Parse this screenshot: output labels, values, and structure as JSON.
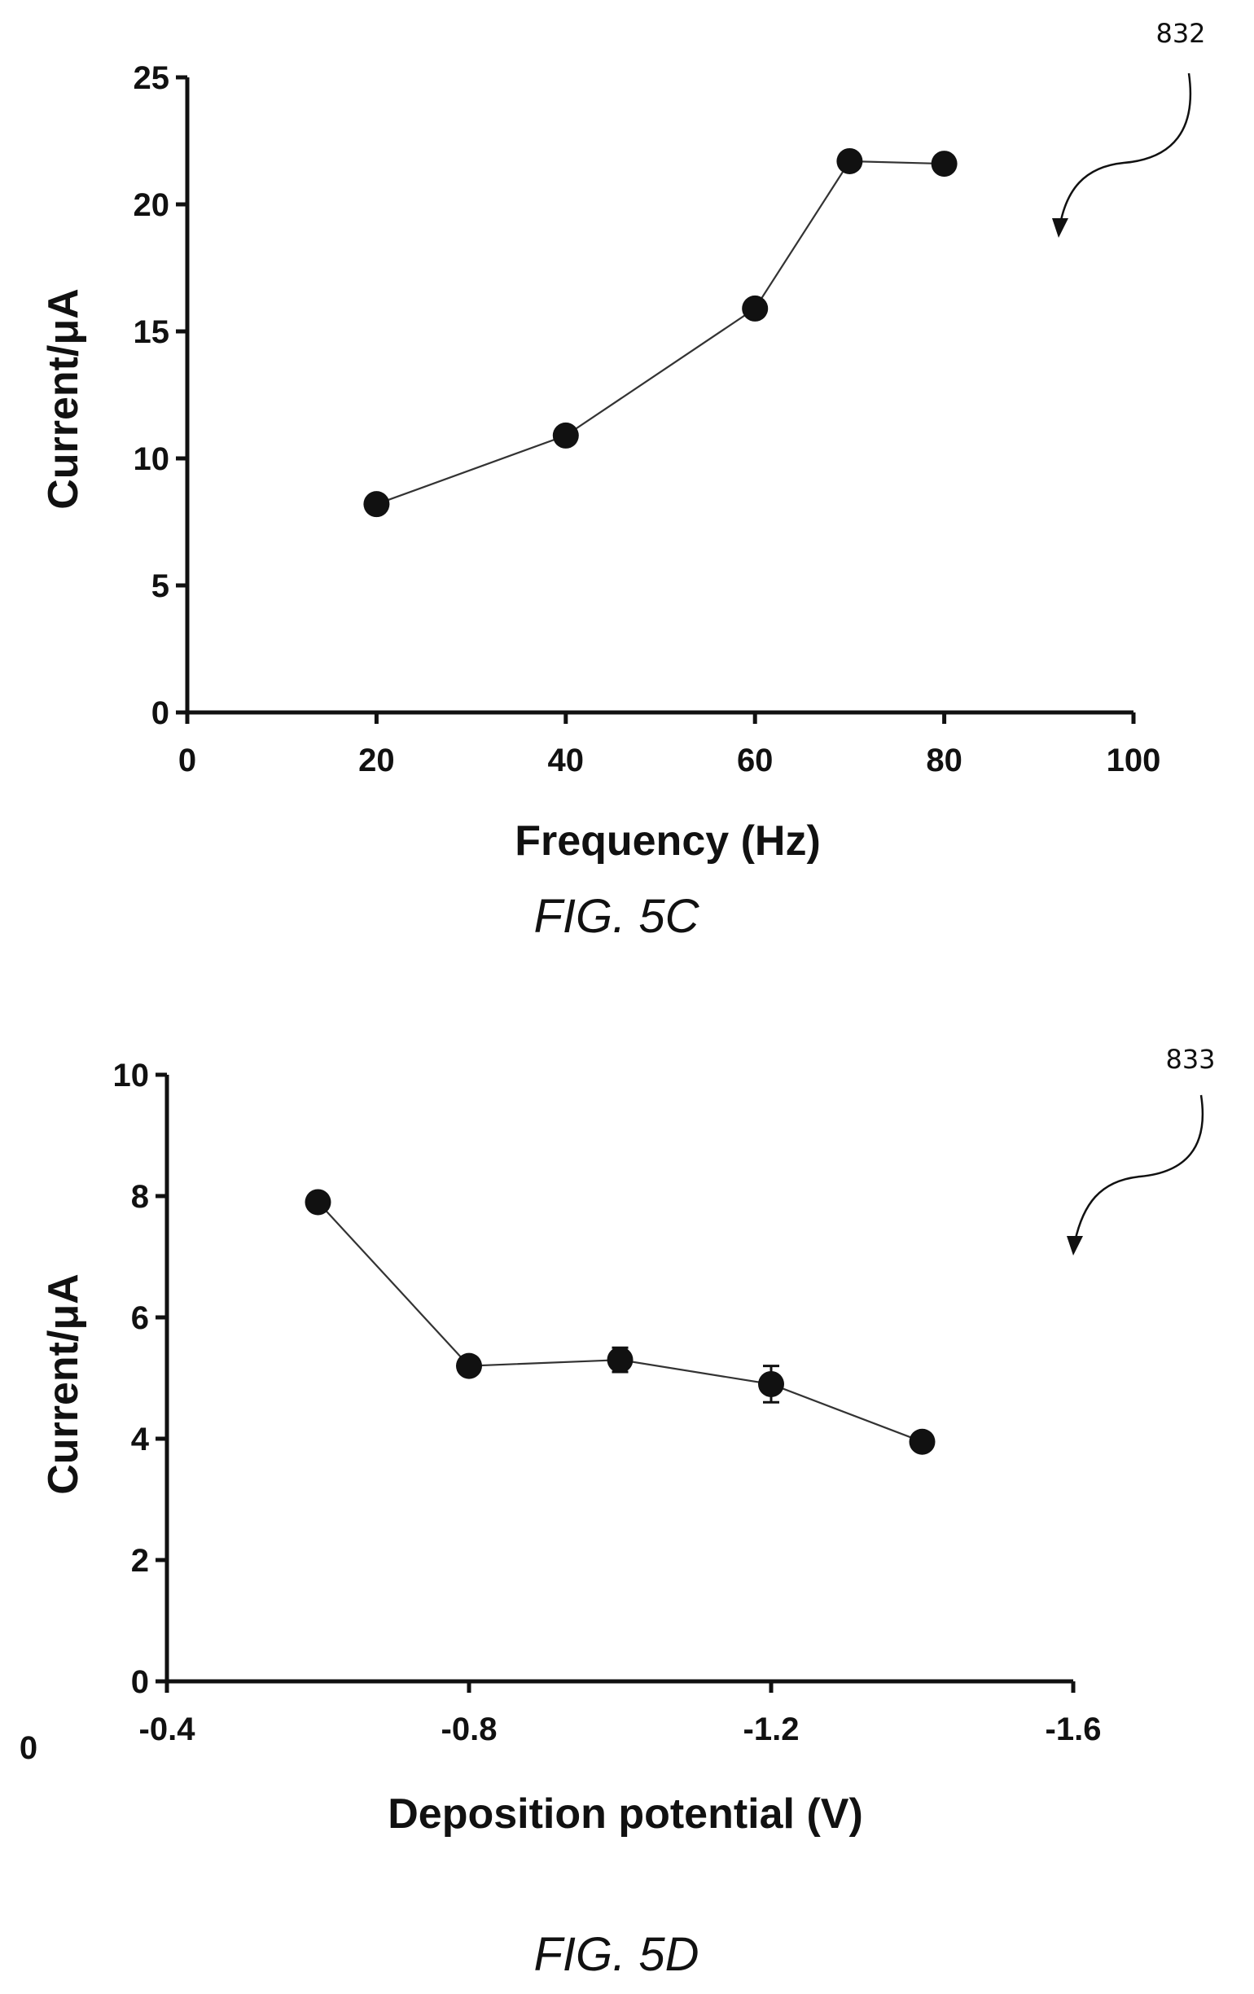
{
  "chart_data": [
    {
      "type": "line",
      "figure_label": "FIG. 5C",
      "reference_number": "832",
      "xlabel": "Frequency (Hz)",
      "ylabel": "Current/μA",
      "xlim": [
        0,
        100
      ],
      "ylim": [
        0,
        25
      ],
      "x_ticks": [
        "0",
        "20",
        "40",
        "60",
        "80",
        "100"
      ],
      "y_ticks": [
        "0",
        "5",
        "10",
        "15",
        "20",
        "25"
      ],
      "x_tick_values": [
        0,
        20,
        40,
        60,
        80,
        100
      ],
      "y_tick_values": [
        0,
        5,
        10,
        15,
        20,
        25
      ],
      "grid": false,
      "series": [
        {
          "x": [
            20,
            40,
            60,
            70,
            80
          ],
          "y": [
            8.2,
            10.9,
            15.9,
            21.7,
            21.6
          ],
          "error": [
            0,
            0,
            0,
            0,
            0
          ]
        }
      ]
    },
    {
      "type": "line",
      "figure_label": "FIG. 5D",
      "reference_number": "833",
      "xlabel": "Deposition potential (V)",
      "ylabel": "Current/μA",
      "xlim": [
        -0.4,
        -1.6
      ],
      "ylim": [
        0,
        10
      ],
      "origin_label": "0",
      "x_ticks": [
        "-0.4",
        "-0.8",
        "-1.2",
        "-1.6"
      ],
      "y_ticks": [
        "0",
        "2",
        "4",
        "6",
        "8",
        "10"
      ],
      "x_tick_values": [
        -0.4,
        -0.8,
        -1.2,
        -1.6
      ],
      "y_tick_values": [
        0,
        2,
        4,
        6,
        8,
        10
      ],
      "grid": false,
      "series": [
        {
          "x": [
            -0.6,
            -0.8,
            -1.0,
            -1.2,
            -1.4
          ],
          "y": [
            7.9,
            5.2,
            5.3,
            4.9,
            3.95
          ],
          "error": [
            0,
            0,
            0.2,
            0.3,
            0
          ]
        }
      ]
    }
  ]
}
